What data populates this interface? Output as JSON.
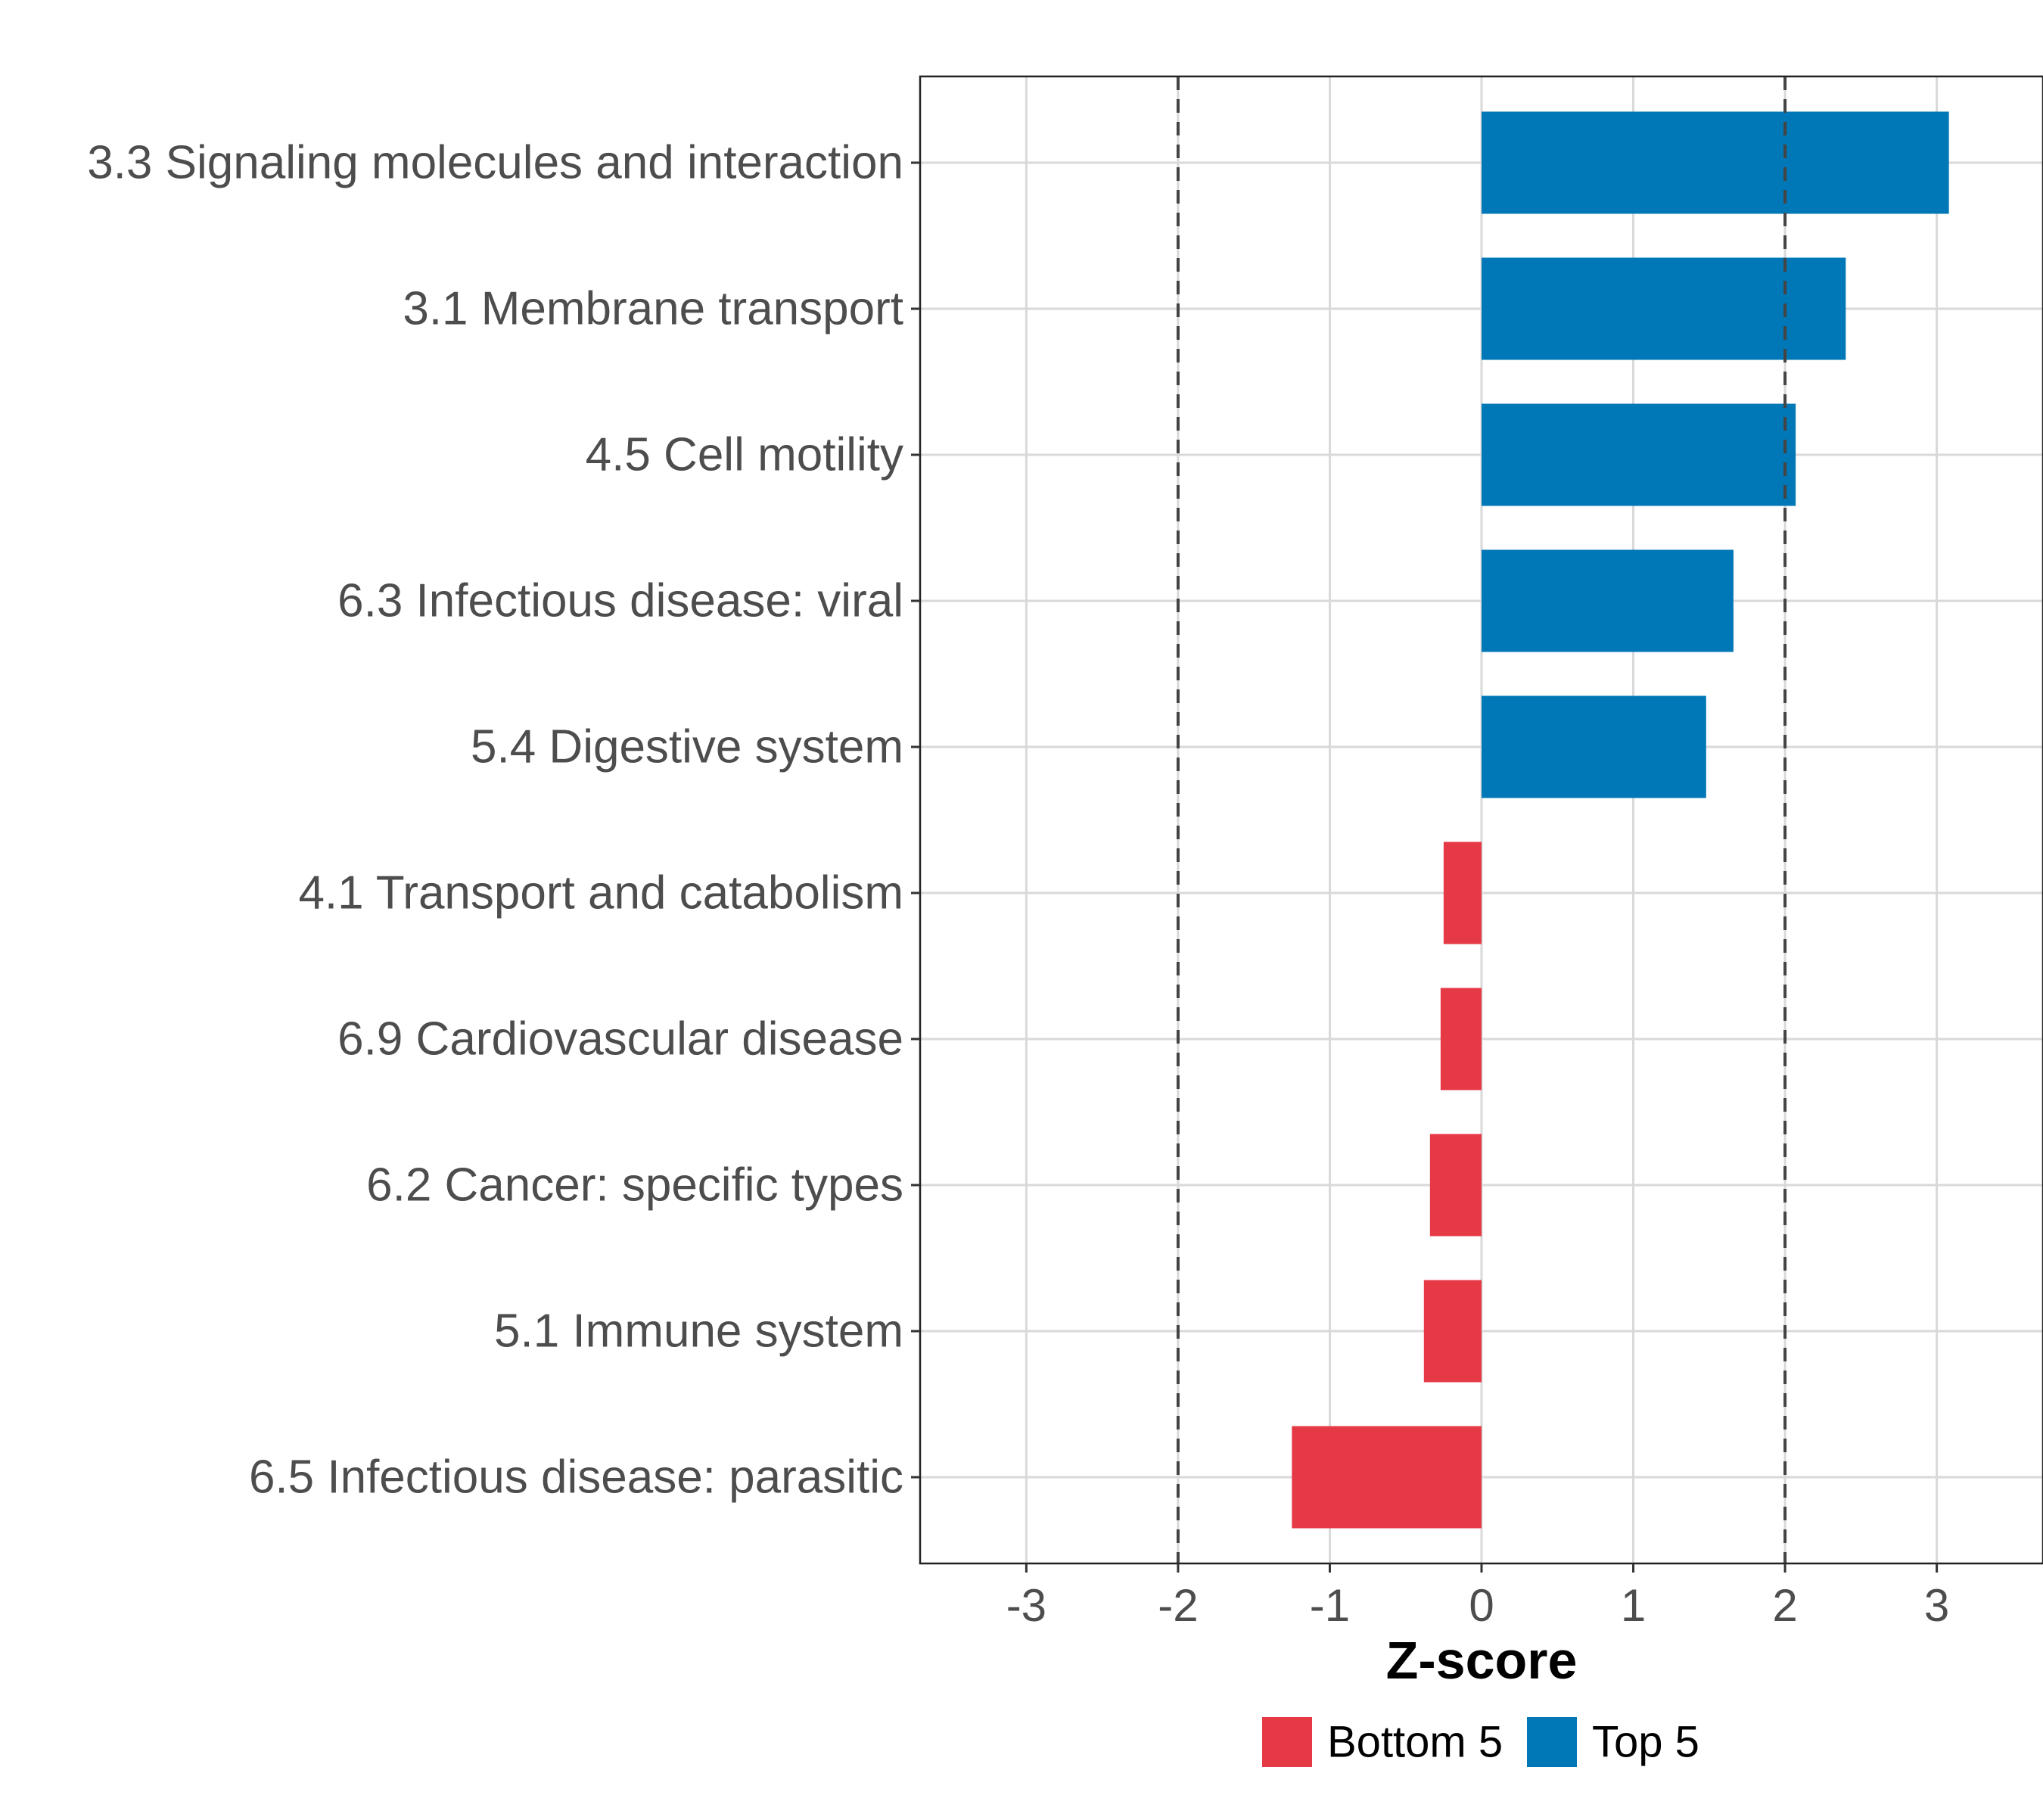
{
  "chart_data": {
    "type": "bar",
    "orientation": "horizontal",
    "title": "",
    "xlabel": "Z-score",
    "ylabel": "",
    "xlim": [
      -3.7,
      3.7
    ],
    "xticks": [
      -3,
      -2,
      -1,
      0,
      1,
      2,
      3
    ],
    "xtick_labels": [
      "-3",
      "-2",
      "-1",
      "0",
      "1",
      "2",
      "3"
    ],
    "reference_lines": [
      -2,
      2
    ],
    "grid": true,
    "legend_position": "bottom",
    "categories": [
      "3.3 Signaling molecules and interaction",
      "3.1 Membrane transport",
      "4.5 Cell motility",
      "6.3 Infectious disease: viral",
      "5.4 Digestive system",
      "4.1 Transport and catabolism",
      "6.9 Cardiovascular disease",
      "6.2 Cancer: specific types",
      "5.1 Immune system",
      "6.5 Infectious disease: parasitic"
    ],
    "values": [
      3.08,
      2.4,
      2.07,
      1.66,
      1.48,
      -0.25,
      -0.27,
      -0.34,
      -0.38,
      -1.25
    ],
    "groups": [
      "Top 5",
      "Top 5",
      "Top 5",
      "Top 5",
      "Top 5",
      "Bottom 5",
      "Bottom 5",
      "Bottom 5",
      "Bottom 5",
      "Bottom 5"
    ],
    "legend": [
      {
        "name": "Bottom 5",
        "color": "#e63946"
      },
      {
        "name": "Top 5",
        "color": "#0077b6"
      }
    ]
  },
  "colors": {
    "top": "#0077b6",
    "bottom": "#e63946",
    "grid": "#d9d9d9",
    "ref_line": "#444444",
    "axis_text": "#4d4d4d"
  }
}
